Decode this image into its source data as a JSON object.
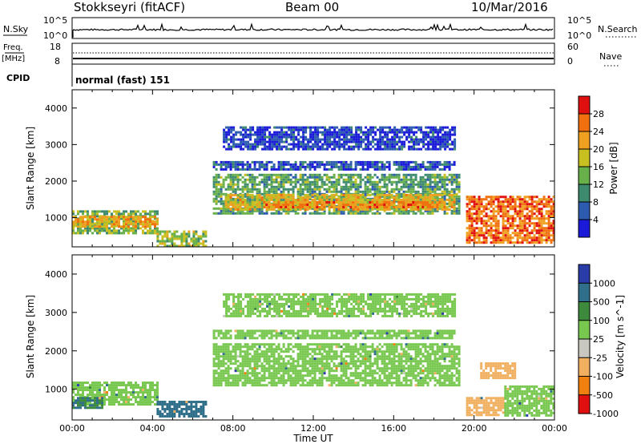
{
  "header": {
    "station": "Stokkseyri (fitACF)",
    "beam": "Beam 00",
    "date": "10/Mar/2016"
  },
  "top_panels": {
    "nsky_label": "N.Sky",
    "nsky_ticks": [
      "10^5",
      "10^0"
    ],
    "nsearch_label": "N.Search",
    "nsearch_ticks": [
      "10^5",
      "10^0"
    ],
    "freq_label": "Freq.",
    "freq_unit": "[MHz]",
    "freq_ticks": [
      "18",
      "8"
    ],
    "nave_label": "Nave",
    "nave_ticks": [
      "60",
      "0"
    ],
    "cpid_label": "CPID",
    "cpid_value": "normal (fast) 151"
  },
  "chart_data": [
    {
      "type": "heatmap",
      "panel": "power",
      "ylabel": "Slant Range [km]",
      "yticks": [
        "1000",
        "2000",
        "3000",
        "4000"
      ],
      "ylim": [
        200,
        4500
      ],
      "xlim": [
        0,
        24
      ],
      "colorbar": {
        "label": "Power [dB]",
        "ticks": [
          "4",
          "8",
          "12",
          "16",
          "20",
          "24",
          "28"
        ],
        "range": [
          0,
          32
        ],
        "colors": [
          "#1a1ad8",
          "#2c5bb0",
          "#3e8a6e",
          "#68b04a",
          "#c8c020",
          "#f0a020",
          "#f07010",
          "#e01010"
        ]
      },
      "regions": [
        {
          "t0": 0.0,
          "t1": 4.2,
          "r0": 600,
          "r1": 1200,
          "level": 14
        },
        {
          "t0": 0.0,
          "t1": 4.2,
          "r0": 750,
          "r1": 1050,
          "level": 22
        },
        {
          "t0": 4.2,
          "t1": 6.7,
          "r0": 250,
          "r1": 650,
          "level": 16
        },
        {
          "t0": 7.0,
          "t1": 19.3,
          "r0": 1100,
          "r1": 2200,
          "level": 12
        },
        {
          "t0": 7.6,
          "t1": 19.0,
          "r0": 1250,
          "r1": 1650,
          "level": 20
        },
        {
          "t0": 9.5,
          "t1": 18.5,
          "r0": 1300,
          "r1": 1450,
          "level": 24
        },
        {
          "t0": 7.0,
          "t1": 19.0,
          "r0": 2300,
          "r1": 2550,
          "level": 5
        },
        {
          "t0": 7.5,
          "t1": 19.0,
          "r0": 2900,
          "r1": 3500,
          "level": 4
        },
        {
          "t0": 19.6,
          "t1": 24.0,
          "r0": 300,
          "r1": 1600,
          "level": 26
        }
      ]
    },
    {
      "type": "heatmap",
      "panel": "velocity",
      "ylabel": "Slant Range [km]",
      "yticks": [
        "1000",
        "2000",
        "3000",
        "4000"
      ],
      "xticks": [
        "00:00",
        "04:00",
        "08:00",
        "12:00",
        "16:00",
        "20:00",
        "00:00"
      ],
      "xlabel": "Time UT",
      "ylim": [
        200,
        4500
      ],
      "xlim": [
        0,
        24
      ],
      "colorbar": {
        "label": "Velocity [m s^-1]",
        "ticks": [
          "1000",
          "500",
          "100",
          "25",
          "-25",
          "-100",
          "-500",
          "-1000"
        ],
        "colors": [
          "#2a3ca8",
          "#2f6f8a",
          "#3d8a3d",
          "#78c850",
          "#c8c8c0",
          "#f0b060",
          "#f08010",
          "#e01010"
        ]
      },
      "regions": [
        {
          "t0": 0.0,
          "t1": 4.2,
          "r0": 600,
          "r1": 1200,
          "vel": 0
        },
        {
          "t0": 0.0,
          "t1": 1.5,
          "r0": 500,
          "r1": 800,
          "vel": 100
        },
        {
          "t0": 4.2,
          "t1": 6.7,
          "r0": 300,
          "r1": 700,
          "vel": 150
        },
        {
          "t0": 7.0,
          "t1": 19.3,
          "r0": 1100,
          "r1": 2200,
          "vel": 0
        },
        {
          "t0": 7.0,
          "t1": 19.0,
          "r0": 2300,
          "r1": 2550,
          "vel": 0
        },
        {
          "t0": 7.5,
          "t1": 19.0,
          "r0": 2900,
          "r1": 3500,
          "vel": 0
        },
        {
          "t0": 19.6,
          "t1": 21.5,
          "r0": 300,
          "r1": 800,
          "vel": -300
        },
        {
          "t0": 21.5,
          "t1": 24.0,
          "r0": 300,
          "r1": 1100,
          "vel": 0
        },
        {
          "t0": 20.3,
          "t1": 22.0,
          "r0": 1300,
          "r1": 1700,
          "vel": -300
        }
      ]
    }
  ]
}
